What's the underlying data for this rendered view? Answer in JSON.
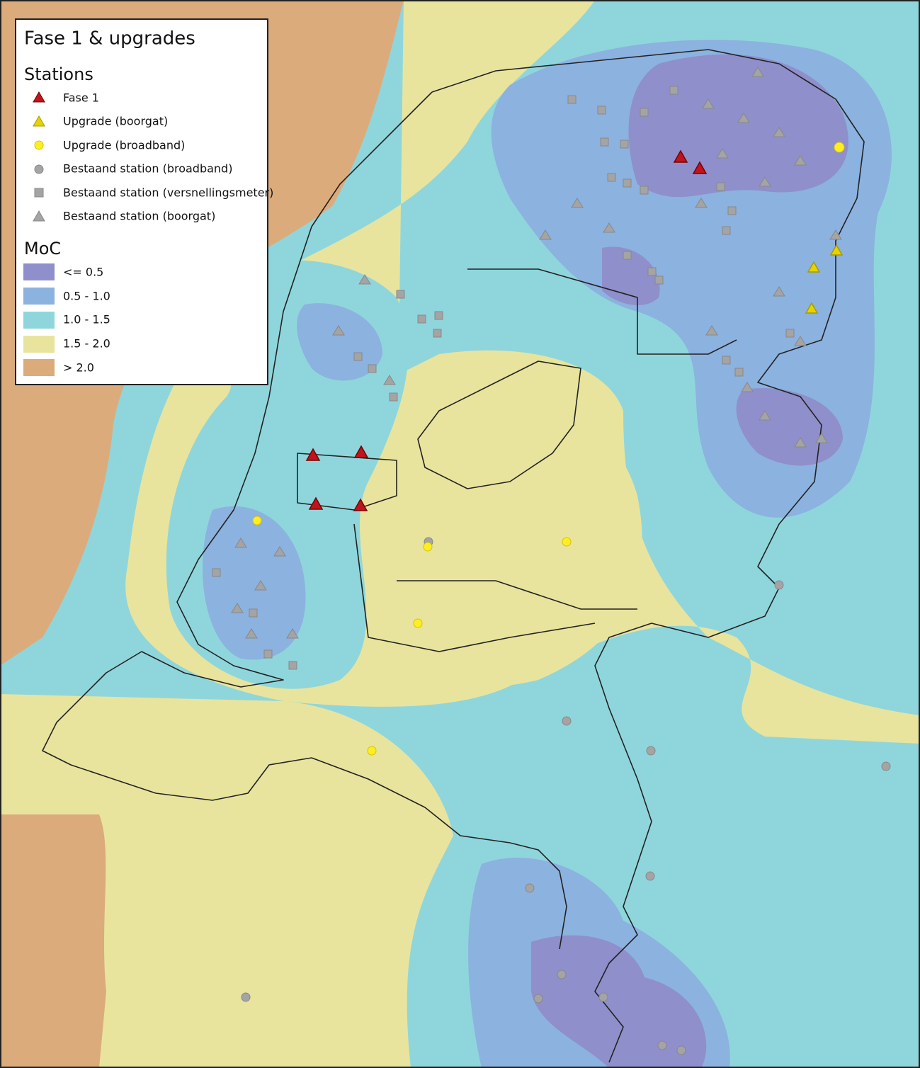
{
  "legend": {
    "title": "Fase 1 & upgrades",
    "stations": {
      "heading": "Stations",
      "items": [
        "Fase 1",
        "Upgrade (boorgat)",
        "Upgrade (broadband)",
        "Bestaand station (broadband)",
        "Bestaand station (versnellingsmeter)",
        "Bestaand station (boorgat)"
      ]
    },
    "moc": {
      "heading": "MoC",
      "classes": [
        "<= 0.5",
        "0.5 - 1.0",
        "1.0 - 1.5",
        "1.5 - 2.0",
        "> 2.0"
      ]
    }
  }
}
